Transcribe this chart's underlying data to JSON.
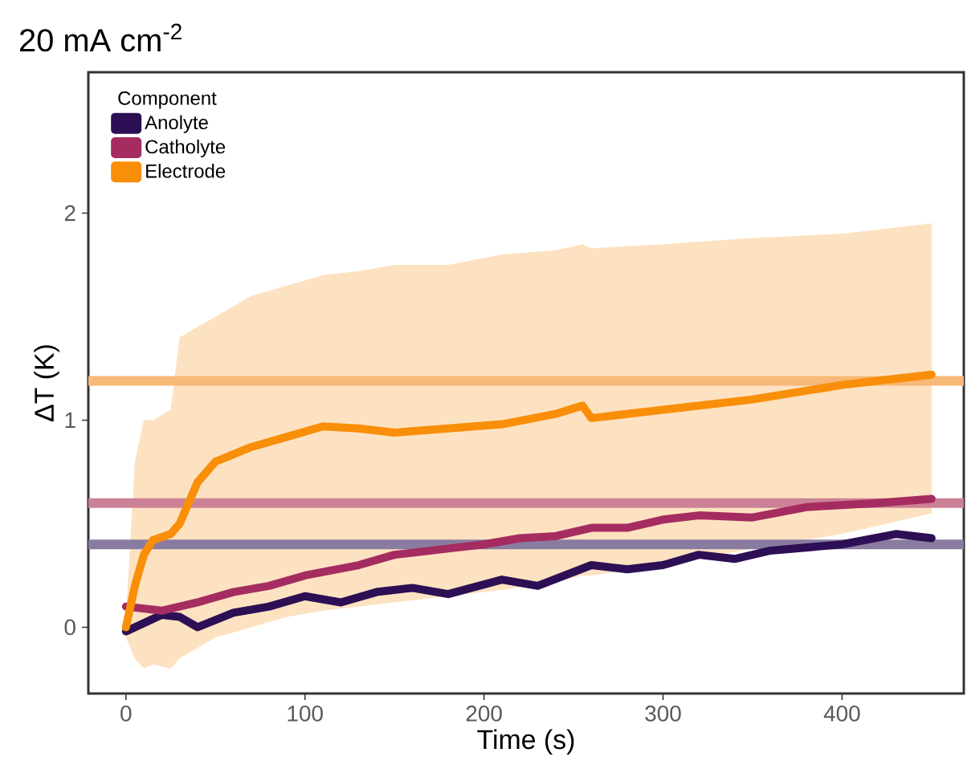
{
  "chart_data": {
    "type": "line",
    "title": "20 mA cm$^{-2}$",
    "xlabel": "Time (s)",
    "ylabel": "ΔT (K)",
    "legend_title": "Component",
    "legend": "top left",
    "grid": false,
    "marker": "none",
    "line_style": "solid",
    "xlim": [
      -21,
      468
    ],
    "ylim": [
      -0.32,
      2.68
    ],
    "xticks": [
      0,
      100,
      200,
      300,
      400
    ],
    "yticks": [
      0,
      1,
      2
    ],
    "series": [
      {
        "name": "Anolyte",
        "color": "#2d0f55",
        "x": [
          0,
          10,
          20,
          30,
          40,
          60,
          80,
          100,
          120,
          140,
          160,
          180,
          210,
          230,
          260,
          280,
          300,
          320,
          340,
          360,
          400,
          430,
          450
        ],
        "values": [
          -0.02,
          0.02,
          0.06,
          0.05,
          0.0,
          0.07,
          0.1,
          0.15,
          0.12,
          0.17,
          0.19,
          0.16,
          0.23,
          0.2,
          0.3,
          0.28,
          0.3,
          0.35,
          0.33,
          0.37,
          0.4,
          0.45,
          0.43
        ]
      },
      {
        "name": "Catholyte",
        "color": "#a52c60",
        "x": [
          0,
          20,
          40,
          60,
          80,
          100,
          130,
          150,
          180,
          200,
          220,
          240,
          260,
          280,
          300,
          320,
          350,
          380,
          420,
          450
        ],
        "values": [
          0.1,
          0.08,
          0.12,
          0.17,
          0.2,
          0.25,
          0.3,
          0.35,
          0.38,
          0.4,
          0.43,
          0.44,
          0.48,
          0.48,
          0.52,
          0.54,
          0.53,
          0.58,
          0.6,
          0.62
        ]
      },
      {
        "name": "Electrode",
        "color": "#f98e09",
        "x": [
          0,
          5,
          10,
          15,
          25,
          30,
          40,
          50,
          70,
          90,
          110,
          130,
          150,
          180,
          210,
          240,
          255,
          260,
          300,
          350,
          400,
          450
        ],
        "values": [
          0,
          0.2,
          0.35,
          0.42,
          0.45,
          0.5,
          0.7,
          0.8,
          0.87,
          0.92,
          0.97,
          0.96,
          0.94,
          0.96,
          0.98,
          1.03,
          1.07,
          1.01,
          1.05,
          1.1,
          1.17,
          1.22
        ],
        "upper": [
          0.05,
          0.8,
          1.0,
          1.0,
          1.05,
          1.4,
          1.45,
          1.5,
          1.6,
          1.65,
          1.7,
          1.72,
          1.75,
          1.75,
          1.8,
          1.82,
          1.85,
          1.83,
          1.85,
          1.88,
          1.9,
          1.95
        ],
        "lower": [
          -0.05,
          -0.15,
          -0.2,
          -0.18,
          -0.2,
          -0.15,
          -0.1,
          -0.05,
          0,
          0.05,
          0.08,
          0.1,
          0.12,
          0.15,
          0.18,
          0.22,
          0.25,
          0.25,
          0.3,
          0.38,
          0.45,
          0.55
        ]
      }
    ],
    "ref_lines": [
      {
        "axis": "y",
        "value": 1.19,
        "color": "#f8b878"
      },
      {
        "axis": "y",
        "value": 0.6,
        "color": "#cc8296"
      },
      {
        "axis": "y",
        "value": 0.4,
        "color": "#8a7ca0"
      }
    ]
  }
}
